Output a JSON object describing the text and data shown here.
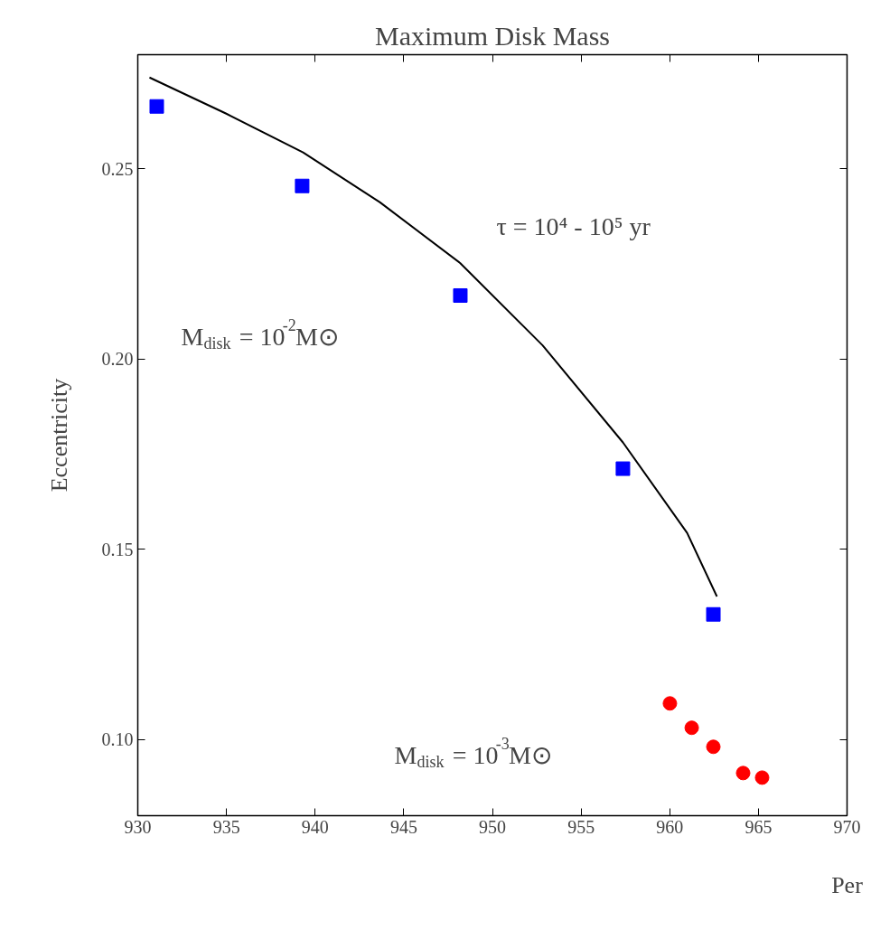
{
  "chart_data": {
    "type": "scatter",
    "title": "Maximum Disk Mass",
    "xlabel": "Per",
    "ylabel": "Eccentricity",
    "xlim": [
      930,
      970
    ],
    "xticks": [
      930,
      935,
      940,
      945,
      950,
      955,
      960,
      965,
      970
    ],
    "ylim": [
      0.08,
      0.28
    ],
    "yticks": [
      {
        "value": 0.1,
        "label": "0.10"
      },
      0.15,
      {
        "value": 0.2,
        "label": "0.20"
      },
      0.25
    ],
    "grid": false,
    "series": [
      {
        "marker": "square",
        "color": "#0000ff",
        "x": [
          931.07,
          939.27,
          948.19,
          957.36,
          962.46
        ],
        "values": [
          0.2664,
          0.2455,
          0.2167,
          0.1712,
          0.1329
        ]
      },
      {
        "marker": "circle",
        "color": "#ff0000",
        "x": [
          960.01,
          961.24,
          962.46,
          964.14,
          965.21
        ],
        "values": [
          0.1095,
          0.1031,
          0.0981,
          0.0912,
          0.09
        ]
      },
      {
        "type": "line",
        "color": "#000000",
        "x": [
          930.66,
          934.99,
          939.32,
          943.66,
          948.19,
          952.83,
          957.36,
          960.98,
          962.66
        ],
        "values": [
          0.274,
          0.2645,
          0.2543,
          0.2412,
          0.2252,
          0.2036,
          0.1781,
          0.1543,
          0.1376
        ]
      }
    ],
    "annotations": [
      "τ = 10⁴ - 10⁵ yr",
      "M$_{disk}$ = 10$^{-2}$M⊙",
      "M$_{disk}$ = 10$^{-3}$M⊙"
    ]
  }
}
